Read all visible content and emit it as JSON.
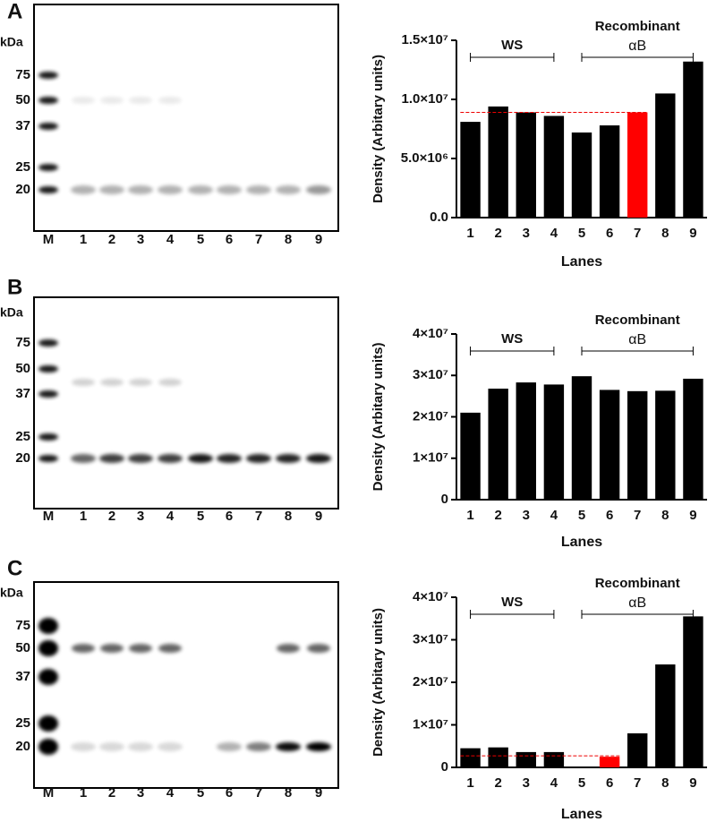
{
  "panels": [
    {
      "letter": "A",
      "gel": {
        "unit": "kDa",
        "markers": [
          "75",
          "50",
          "37",
          "25",
          "20"
        ],
        "lanes": [
          "M",
          "1",
          "2",
          "3",
          "4",
          "5",
          "6",
          "7",
          "8",
          "9"
        ]
      }
    },
    {
      "letter": "B",
      "gel": {
        "unit": "kDa",
        "markers": [
          "75",
          "50",
          "37",
          "25",
          "20"
        ],
        "lanes": [
          "M",
          "1",
          "2",
          "3",
          "4",
          "5",
          "6",
          "7",
          "8",
          "9"
        ]
      }
    },
    {
      "letter": "C",
      "gel": {
        "unit": "kDa",
        "markers": [
          "75",
          "50",
          "37",
          "25",
          "20"
        ],
        "lanes": [
          "M",
          "1",
          "2",
          "3",
          "4",
          "5",
          "6",
          "7",
          "8",
          "9"
        ]
      }
    }
  ],
  "chart_data": [
    {
      "type": "bar",
      "y_label": "Density (Arbitary units)",
      "x_label": "Lanes",
      "annotations": [
        "WS",
        "Recombinant",
        "αB"
      ],
      "categories": [
        "1",
        "2",
        "3",
        "4",
        "5",
        "6",
        "7",
        "8",
        "9"
      ],
      "values": [
        8100000,
        9400000,
        8900000,
        8600000,
        7200000,
        7800000,
        8900000,
        10500000,
        13200000
      ],
      "colors": [
        "#000",
        "#000",
        "#000",
        "#000",
        "#000",
        "#000",
        "#f00",
        "#000",
        "#000"
      ],
      "reference_line": {
        "value": 8900000,
        "color": "#e00"
      },
      "ylim": [
        0,
        15000000
      ],
      "yticks": [
        {
          "value": 0,
          "label": "0.0"
        },
        {
          "value": 5000000,
          "label": "5.0×10⁶"
        },
        {
          "value": 10000000,
          "label": "1.0×10⁷"
        },
        {
          "value": 15000000,
          "label": "1.5×10⁷"
        }
      ]
    },
    {
      "type": "bar",
      "y_label": "Density (Arbitary units)",
      "x_label": "Lanes",
      "annotations": [
        "WS",
        "Recombinant",
        "αB"
      ],
      "categories": [
        "1",
        "2",
        "3",
        "4",
        "5",
        "6",
        "7",
        "8",
        "9"
      ],
      "values": [
        21000000,
        26800000,
        28300000,
        27800000,
        29800000,
        26500000,
        26200000,
        26300000,
        29200000
      ],
      "colors": [
        "#000",
        "#000",
        "#000",
        "#000",
        "#000",
        "#000",
        "#000",
        "#000",
        "#000"
      ],
      "ylim": [
        0,
        40000000
      ],
      "yticks": [
        0,
        {
          "value": 10000000,
          "label": "1×10⁷"
        },
        {
          "value": 20000000,
          "label": "2×10⁷"
        },
        {
          "value": 30000000,
          "label": "3×10⁷"
        },
        {
          "value": 40000000,
          "label": "4×10⁷"
        }
      ]
    },
    {
      "type": "bar",
      "y_label": "Density (Arbitary units)",
      "x_label": "Lanes",
      "annotations": [
        "WS",
        "Recombinant",
        "αB"
      ],
      "categories": [
        "1",
        "2",
        "3",
        "4",
        "5",
        "6",
        "7",
        "8",
        "9"
      ],
      "values": [
        4500000,
        4700000,
        3600000,
        3600000,
        0,
        2500000,
        8000000,
        24200000,
        35500000
      ],
      "colors": [
        "#000",
        "#000",
        "#000",
        "#000",
        "#000",
        "#f00",
        "#000",
        "#000",
        "#000"
      ],
      "reference_line": {
        "value": 2700000,
        "color": "#e00"
      },
      "ylim": [
        0,
        40000000
      ],
      "yticks": [
        0,
        {
          "value": 10000000,
          "label": "1×10⁷"
        },
        {
          "value": 20000000,
          "label": "2×10⁷"
        },
        {
          "value": 30000000,
          "label": "3×10⁷"
        },
        {
          "value": 40000000,
          "label": "4×10⁷"
        }
      ]
    }
  ]
}
